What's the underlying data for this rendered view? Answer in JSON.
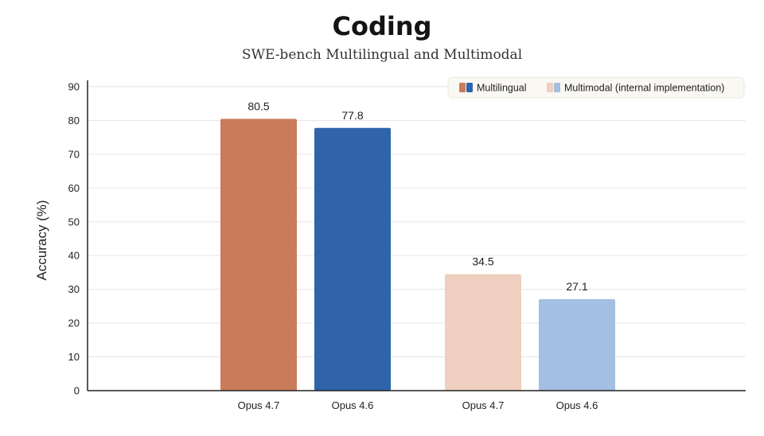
{
  "header": {
    "title": "Coding",
    "subtitle": "SWE-bench Multilingual and Multimodal"
  },
  "chart_data": {
    "type": "bar",
    "ylabel": "Accuracy (%)",
    "ylim": [
      0,
      90
    ],
    "yticks": [
      0,
      10,
      20,
      30,
      40,
      50,
      60,
      70,
      80,
      90
    ],
    "grid": true,
    "legend_position": "top-right",
    "groups": [
      {
        "name": "Multilingual",
        "bars": [
          {
            "category": "Opus 4.7",
            "value": 80.5,
            "label": "80.5",
            "color": "#C97B5A"
          },
          {
            "category": "Opus 4.6",
            "value": 77.8,
            "label": "77.8",
            "color": "#2F64AA"
          }
        ]
      },
      {
        "name": "Multimodal (internal implementation)",
        "bars": [
          {
            "category": "Opus 4.7",
            "value": 34.5,
            "label": "34.5",
            "color": "#EFCFBF"
          },
          {
            "category": "Opus 4.6",
            "value": 27.1,
            "label": "27.1",
            "color": "#A3BFE2"
          }
        ]
      }
    ],
    "legend": [
      {
        "label": "Multilingual",
        "colors": [
          "#C97B5A",
          "#2F64AA"
        ]
      },
      {
        "label": "Multimodal (internal implementation)",
        "colors": [
          "#EFCFBF",
          "#A3BFE2"
        ]
      }
    ]
  }
}
